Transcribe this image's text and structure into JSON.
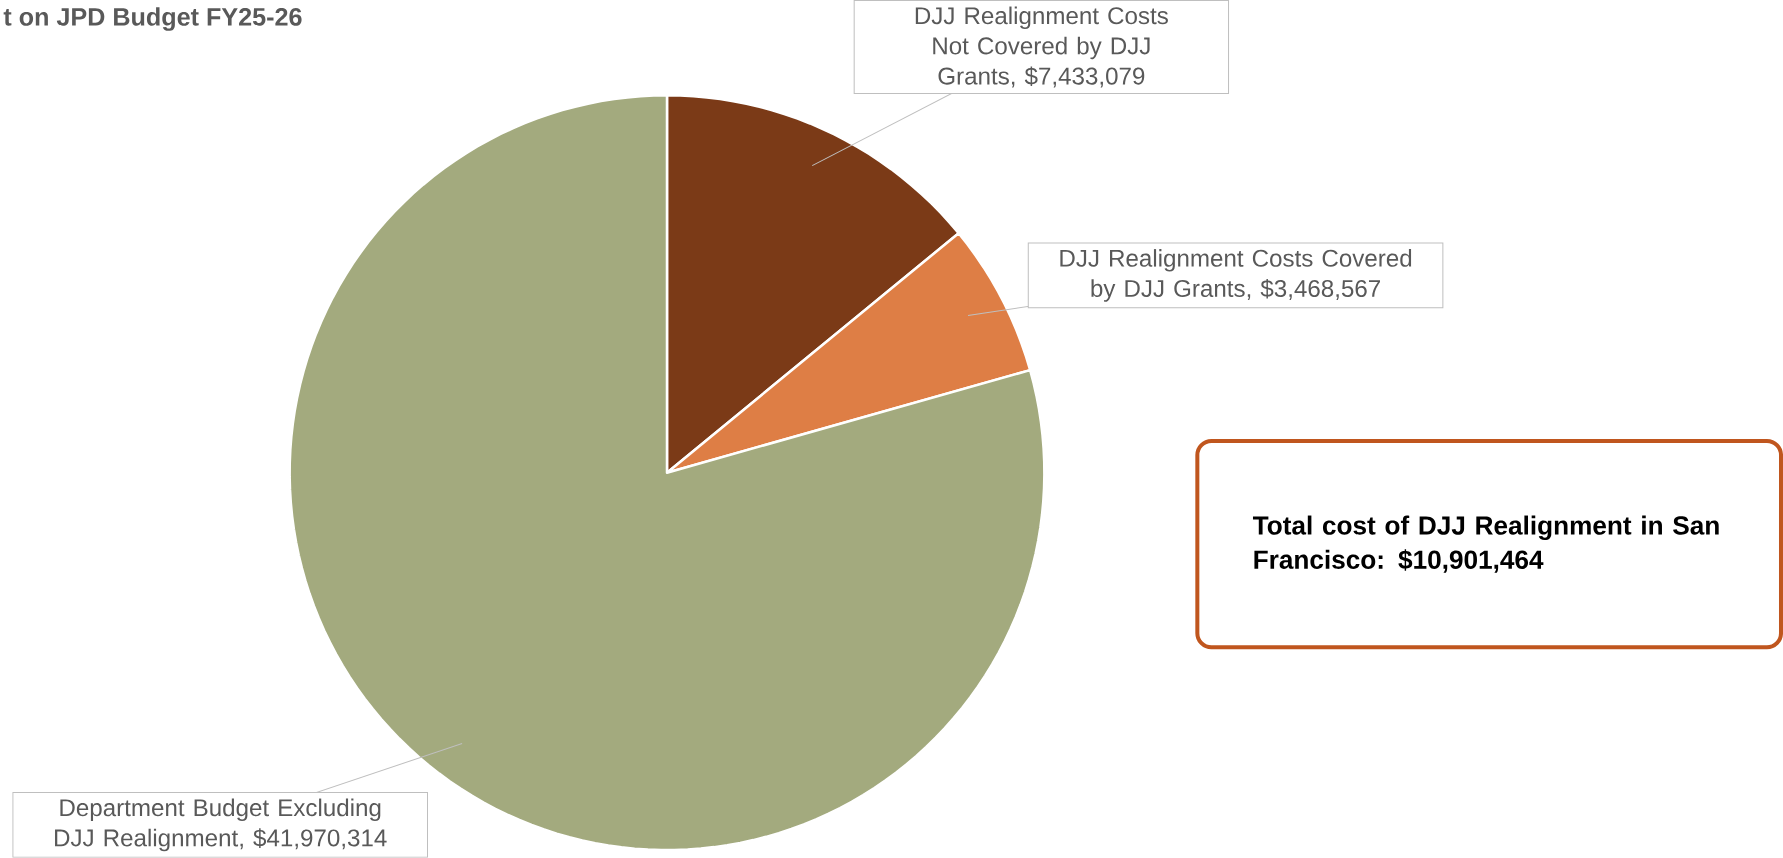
{
  "chart_data": {
    "type": "pie",
    "title": "t on JPD Budget FY25-26",
    "categories": [
      "DJJ Realignment Costs Not Covered by DJJ Grants",
      "DJJ Realignment Costs Covered by DJJ Grants",
      "Department Budget Excluding DJJ Realignment"
    ],
    "values": [
      7433079,
      3468567,
      41970314
    ],
    "colors": [
      "#7b3a17",
      "#de7e45",
      "#a3aa7e"
    ],
    "value_labels": [
      ", $7,433,079",
      ", $3,468,567",
      ", $41,970,314"
    ],
    "annotations": [
      "Total cost of DJJ Realignment in San Francisco: $10,901,464"
    ]
  }
}
